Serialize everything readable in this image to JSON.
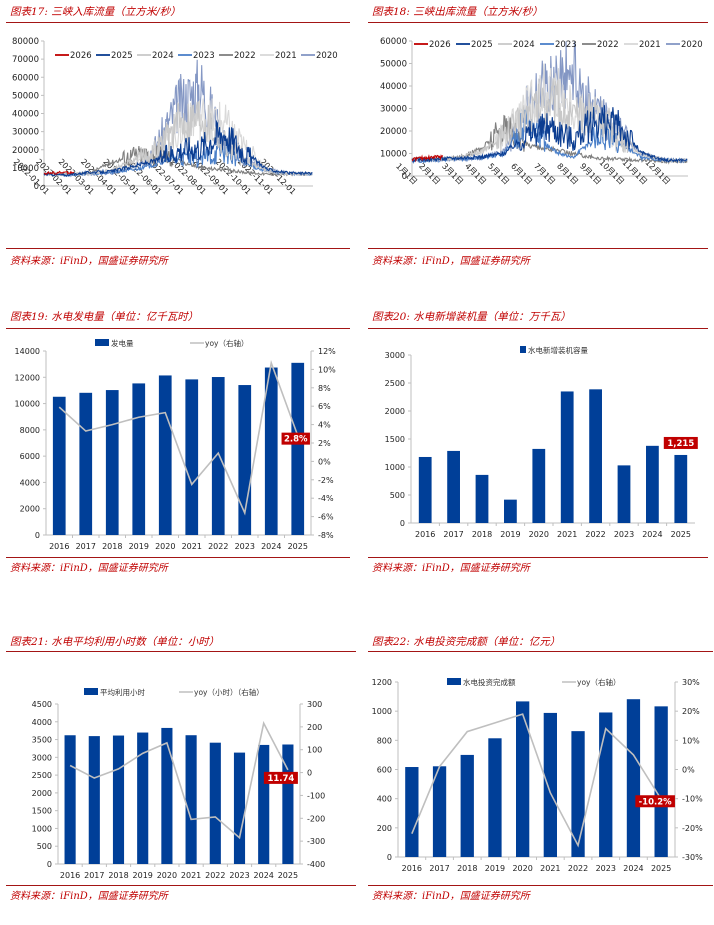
{
  "source_text": "资料来源：iFinD，国盛证券研究所",
  "colors": {
    "accent_red": "#c00000",
    "bar_blue": "#003f98",
    "line_gray": "#bfbfbf"
  },
  "panels": [
    {
      "title": "图表17:  三峡入库流量（立方米/秒）"
    },
    {
      "title": "图表18:  三峡出库流量（立方米/秒）"
    },
    {
      "title": "图表19:  水电发电量（单位：亿千瓦时）"
    },
    {
      "title": "图表20:  水电新增装机量（单位：万千瓦）"
    },
    {
      "title": "图表21:  水电平均利用小时数（单位：小时）"
    },
    {
      "title": "图表22:  水电投资完成额（单位：亿元）"
    }
  ],
  "chart_data": [
    {
      "type": "line",
      "title": "三峡入库流量（立方米/秒）",
      "xlabel": "",
      "ylabel": "",
      "ylim": [
        0,
        80000
      ],
      "yticks": [
        "0",
        "10000",
        "20000",
        "30000",
        "40000",
        "50000",
        "60000",
        "70000",
        "80000"
      ],
      "x_ticks": [
        "2022-01-01",
        "2022-02-01",
        "2022-03-01",
        "2022-04-01",
        "2022-05-01",
        "2022-06-01",
        "2022-07-01",
        "2022-08-01",
        "2022-09-01",
        "2022-10-01",
        "2022-11-01",
        "2022-12-01"
      ],
      "legend_position": "top",
      "x_months": [
        1,
        2,
        3,
        4,
        5,
        6,
        7,
        8,
        9,
        10,
        11,
        12
      ],
      "series": [
        {
          "name": "2026",
          "color": "#c00000",
          "values": [
            7000,
            7500,
            null,
            null,
            null,
            null,
            null,
            null,
            null,
            null,
            null,
            null
          ]
        },
        {
          "name": "2025",
          "color": "#0b3d91",
          "values": [
            6500,
            6000,
            7500,
            8000,
            11000,
            14000,
            20000,
            22000,
            30000,
            18000,
            9000,
            7000
          ]
        },
        {
          "name": "2024",
          "color": "#c8c8c8",
          "values": [
            7000,
            6500,
            6500,
            9000,
            14000,
            20000,
            35000,
            40000,
            25000,
            14000,
            8000,
            6500
          ]
        },
        {
          "name": "2023",
          "color": "#4a7fc8",
          "values": [
            6500,
            6000,
            6500,
            7500,
            9000,
            12000,
            16000,
            15000,
            20000,
            12000,
            8000,
            6500
          ]
        },
        {
          "name": "2022",
          "color": "#7f7f7f",
          "values": [
            6500,
            6500,
            7000,
            13000,
            17000,
            18000,
            14000,
            10000,
            9000,
            7500,
            6500,
            6500
          ]
        },
        {
          "name": "2021",
          "color": "#d9d9d9",
          "values": [
            7000,
            6500,
            6500,
            8000,
            11000,
            20000,
            30000,
            38000,
            35000,
            20000,
            9000,
            7000
          ]
        },
        {
          "name": "2020",
          "color": "#8497c4",
          "values": [
            6500,
            6500,
            6500,
            7000,
            10000,
            22000,
            45000,
            55000,
            25000,
            15000,
            9000,
            7000
          ]
        }
      ]
    },
    {
      "type": "line",
      "title": "三峡出库流量（立方米/秒）",
      "xlabel": "",
      "ylabel": "",
      "ylim": [
        0,
        60000
      ],
      "yticks": [
        "0",
        "10000",
        "20000",
        "30000",
        "40000",
        "50000",
        "60000"
      ],
      "x_ticks": [
        "1月1日",
        "2月1日",
        "3月1日",
        "4月1日",
        "5月1日",
        "6月1日",
        "7月1日",
        "8月1日",
        "9月1日",
        "10月1日",
        "11月1日",
        "12月1日"
      ],
      "legend_position": "top",
      "x_months": [
        1,
        2,
        3,
        4,
        5,
        6,
        7,
        8,
        9,
        10,
        11,
        12
      ],
      "series": [
        {
          "name": "2026",
          "color": "#c00000",
          "values": [
            7500,
            8500,
            null,
            null,
            null,
            null,
            null,
            null,
            null,
            null,
            null,
            null
          ]
        },
        {
          "name": "2025",
          "color": "#0b3d91",
          "values": [
            7000,
            7500,
            8000,
            8500,
            10000,
            18000,
            22000,
            16000,
            25000,
            22000,
            10000,
            7000
          ]
        },
        {
          "name": "2024",
          "color": "#c8c8c8",
          "values": [
            7500,
            7500,
            8000,
            11000,
            17000,
            28000,
            35000,
            25000,
            30000,
            18000,
            10000,
            7000
          ]
        },
        {
          "name": "2023",
          "color": "#4a7fc8",
          "values": [
            6500,
            7000,
            7500,
            8000,
            10000,
            25000,
            12000,
            8000,
            18000,
            15000,
            8000,
            7000
          ]
        },
        {
          "name": "2022",
          "color": "#7f7f7f",
          "values": [
            7500,
            7500,
            8000,
            12000,
            22000,
            14000,
            12000,
            10000,
            8000,
            7500,
            7000,
            6500
          ]
        },
        {
          "name": "2021",
          "color": "#d9d9d9",
          "values": [
            8000,
            7500,
            8000,
            10000,
            18000,
            30000,
            40000,
            30000,
            25000,
            15000,
            9000,
            7000
          ]
        },
        {
          "name": "2020",
          "color": "#8497c4",
          "values": [
            7000,
            7000,
            7500,
            8000,
            11000,
            30000,
            42000,
            47000,
            28000,
            20000,
            10000,
            7000
          ]
        }
      ]
    },
    {
      "type": "bar",
      "title": "水电发电量（单位：亿千瓦时）",
      "categories": [
        "2016",
        "2017",
        "2018",
        "2019",
        "2020",
        "2021",
        "2022",
        "2023",
        "2024",
        "2025"
      ],
      "series": [
        {
          "name": "发电量",
          "axis": "left",
          "values": [
            10518,
            10819,
            11027,
            11534,
            12140,
            11840,
            12020,
            11409,
            12742,
            13100
          ]
        },
        {
          "name": "yoy（右轴）",
          "axis": "right",
          "type": "line",
          "values": [
            5.9,
            3.3,
            4.0,
            4.8,
            5.3,
            -2.5,
            0.9,
            -5.6,
            10.7,
            2.8
          ]
        }
      ],
      "ylim": [
        0,
        14000
      ],
      "yticks": [
        "0",
        "2000",
        "4000",
        "6000",
        "8000",
        "10000",
        "12000",
        "14000"
      ],
      "y2lim": [
        -8,
        12
      ],
      "y2ticks": [
        "-8%",
        "-6%",
        "-4%",
        "-2%",
        "0%",
        "2%",
        "4%",
        "6%",
        "8%",
        "10%",
        "12%"
      ],
      "annotation": "2.8%",
      "legend_position": "top"
    },
    {
      "type": "bar",
      "title": "水电新增装机量（单位：万千瓦）",
      "categories": [
        "2016",
        "2017",
        "2018",
        "2019",
        "2020",
        "2021",
        "2022",
        "2023",
        "2024",
        "2025"
      ],
      "series": [
        {
          "name": "水电新增装机容量",
          "axis": "left",
          "values": [
            1179,
            1287,
            859,
            417,
            1323,
            2349,
            2387,
            1029,
            1378,
            1215
          ]
        }
      ],
      "ylim": [
        0,
        3000
      ],
      "yticks": [
        "0",
        "500",
        "1000",
        "1500",
        "2000",
        "2500",
        "3000"
      ],
      "annotation": "1,215",
      "legend_position": "top"
    },
    {
      "type": "bar",
      "title": "水电平均利用小时数（单位：小时）",
      "categories": [
        "2016",
        "2017",
        "2018",
        "2019",
        "2020",
        "2021",
        "2022",
        "2023",
        "2024",
        "2025"
      ],
      "series": [
        {
          "name": "平均利用小时",
          "axis": "left",
          "values": [
            3621,
            3597,
            3613,
            3697,
            3827,
            3622,
            3412,
            3133,
            3349,
            3361
          ]
        },
        {
          "name": "yoy（小时）（右轴）",
          "axis": "right",
          "type": "line",
          "values": [
            31,
            -24,
            16,
            84,
            130,
            -205,
            -194,
            -285,
            216,
            11.74
          ]
        }
      ],
      "ylim": [
        0,
        4500
      ],
      "yticks": [
        "0",
        "500",
        "1000",
        "1500",
        "2000",
        "2500",
        "3000",
        "3500",
        "4000",
        "4500"
      ],
      "y2lim": [
        -400,
        300
      ],
      "y2ticks": [
        "-400",
        "-300",
        "-200",
        "-100",
        "0",
        "100",
        "200",
        "300"
      ],
      "annotation": "11.74",
      "legend_position": "top"
    },
    {
      "type": "bar",
      "title": "水电投资完成额（单位：亿元）",
      "categories": [
        "2016",
        "2017",
        "2018",
        "2019",
        "2020",
        "2021",
        "2022",
        "2023",
        "2024",
        "2025"
      ],
      "series": [
        {
          "name": "水电投资完成额",
          "axis": "left",
          "values": [
            617,
            622,
            700,
            814,
            1067,
            988,
            863,
            991,
            1082,
            1033
          ]
        },
        {
          "name": "yoy（右轴）",
          "axis": "right",
          "type": "line",
          "values": [
            -22,
            1,
            13,
            16,
            19,
            -8,
            -26,
            14,
            5,
            -10.2
          ]
        }
      ],
      "ylim": [
        0,
        1200
      ],
      "yticks": [
        "0",
        "200",
        "400",
        "600",
        "800",
        "1000",
        "1200"
      ],
      "y2lim": [
        -30,
        30
      ],
      "y2ticks": [
        "-30%",
        "-20%",
        "-10%",
        "0%",
        "10%",
        "20%",
        "30%"
      ],
      "annotation": "-10.2%",
      "legend_position": "top"
    }
  ]
}
